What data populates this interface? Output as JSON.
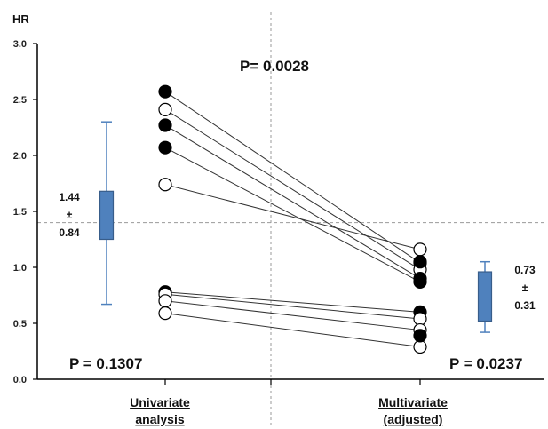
{
  "chart_data": {
    "type": "scatter",
    "ylabel": "HR",
    "ylim": [
      0,
      3
    ],
    "y_ticks": [
      "0.0",
      "0.5",
      "1.0",
      "1.5",
      "2.0",
      "2.5",
      "3.0"
    ],
    "categories": [
      [
        "Univariate",
        "analysis"
      ],
      [
        "Multivariate",
        "(adjusted)"
      ]
    ],
    "reference_line_y": 1.4,
    "grid": false,
    "pairs": [
      {
        "filled": true,
        "x": [
          "Univariate",
          "Multivariate"
        ],
        "y": [
          2.57,
          1.04
        ]
      },
      {
        "filled": false,
        "x": [
          "Univariate",
          "Multivariate"
        ],
        "y": [
          2.41,
          0.98
        ]
      },
      {
        "filled": true,
        "x": [
          "Univariate",
          "Multivariate"
        ],
        "y": [
          2.27,
          0.9
        ]
      },
      {
        "filled": true,
        "x": [
          "Univariate",
          "Multivariate"
        ],
        "y": [
          2.07,
          0.87
        ]
      },
      {
        "filled": false,
        "x": [
          "Univariate",
          "Multivariate"
        ],
        "y": [
          1.74,
          1.16
        ]
      },
      {
        "filled": true,
        "x": [
          "Univariate",
          "Multivariate"
        ],
        "y": [
          0.78,
          0.6
        ]
      },
      {
        "filled": false,
        "x": [
          "Univariate",
          "Multivariate"
        ],
        "y": [
          0.76,
          0.54
        ]
      },
      {
        "filled": false,
        "x": [
          "Univariate",
          "Multivariate"
        ],
        "y": [
          0.7,
          0.44
        ]
      },
      {
        "filled": false,
        "x": [
          "Univariate",
          "Multivariate"
        ],
        "y": [
          0.59,
          0.29
        ]
      }
    ],
    "extra_points": [
      {
        "filled": true,
        "x": "Multivariate",
        "y": 1.05
      },
      {
        "filled": true,
        "x": "Multivariate",
        "y": 0.39
      }
    ],
    "boxplots": [
      {
        "group": "Univariate",
        "min": 0.67,
        "q1": 1.25,
        "q3": 1.68,
        "max": 2.3,
        "mean": "1.44",
        "pm": "±",
        "sd": "0.84"
      },
      {
        "group": "Multivariate",
        "min": 0.42,
        "q1": 0.52,
        "q3": 0.96,
        "max": 1.05,
        "mean": "0.73",
        "pm": "±",
        "sd": "0.31"
      }
    ],
    "annotations": {
      "p_center": "P= 0.0028",
      "p_left": "P = 0.1307",
      "p_right": "P = 0.0237"
    },
    "colors": {
      "box_fill": "#4f81bd",
      "box_stroke": "#385d8a",
      "whisker": "#4f81bd",
      "ref_line": "#999999",
      "marker_fill": "#000000",
      "marker_open": "#ffffff"
    }
  }
}
